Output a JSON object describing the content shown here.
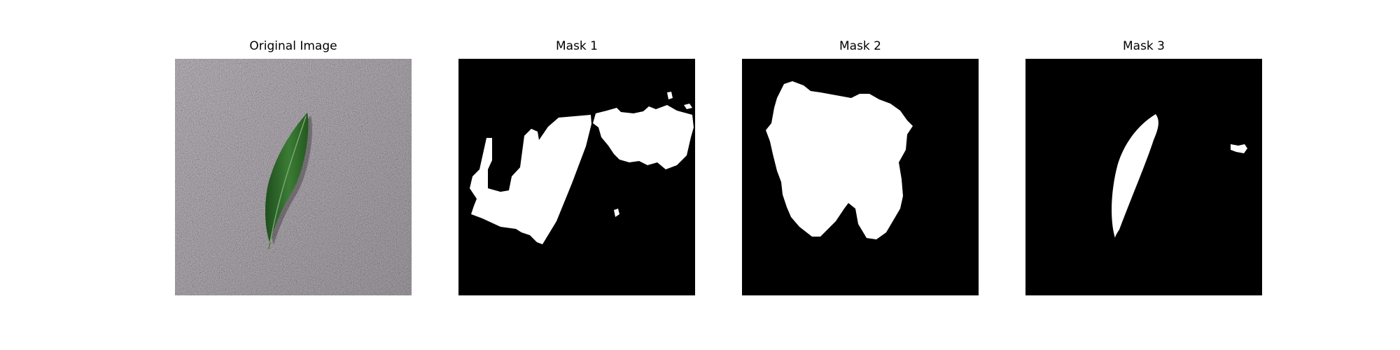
{
  "panels": [
    {
      "title": "Original Image",
      "kind": "photo"
    },
    {
      "title": "Mask 1",
      "kind": "mask"
    },
    {
      "title": "Mask 2",
      "kind": "mask"
    },
    {
      "title": "Mask 3",
      "kind": "mask"
    }
  ],
  "colors": {
    "background": "#ffffff",
    "mask_background": "#000000",
    "mask_foreground": "#ffffff",
    "surface": "#9b9499",
    "leaf": "#2f6b2c"
  }
}
